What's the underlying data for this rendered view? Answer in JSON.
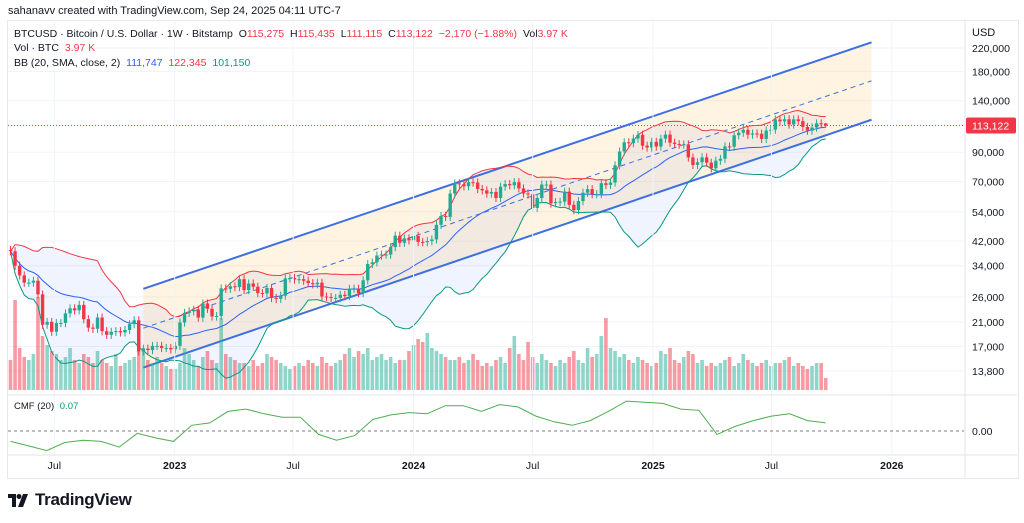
{
  "credit": "sahanavv created with TradingView.com, Sep 24, 2025 04:11 UTC-7",
  "legend": {
    "symbol": "BTCUSD · Bitcoin / U.S. Dollar · 1W · Bitstamp",
    "open_label": "O",
    "open": "115,275",
    "high_label": "H",
    "high": "115,435",
    "low_label": "L",
    "low": "111,115",
    "close_label": "C",
    "close": "113,122",
    "change": "−2,170 (−1.88%)",
    "vol_label": "Vol",
    "vol": "3.97 K",
    "volume_name": "Vol · BTC",
    "volume_value": "3.97 K",
    "bb_name": "BB (20, SMA, close, 2)",
    "bb_basis": "111,747",
    "bb_upper": "122,345",
    "bb_lower": "101,150",
    "cmf_name": "CMF (20)",
    "cmf_value": "0.07"
  },
  "price_axis": {
    "currency": "USD",
    "scale": "log",
    "ticks": [
      {
        "label": "220,000",
        "value": 220000
      },
      {
        "label": "180,000",
        "value": 180000
      },
      {
        "label": "140,000",
        "value": 140000
      },
      {
        "label": "90,000",
        "value": 90000
      },
      {
        "label": "70,000",
        "value": 70000
      },
      {
        "label": "54,000",
        "value": 54000
      },
      {
        "label": "42,000",
        "value": 42000
      },
      {
        "label": "34,000",
        "value": 34000
      },
      {
        "label": "26,000",
        "value": 26000
      },
      {
        "label": "21,000",
        "value": 21000
      },
      {
        "label": "17,000",
        "value": 17000
      },
      {
        "label": "13,800",
        "value": 13800
      }
    ],
    "last_price_label": "113,122",
    "last_price": 113122
  },
  "cmf_axis": {
    "zero_label": "0.00"
  },
  "time_axis": {
    "ticks": [
      {
        "label": "Jul",
        "date": "2022-07-01",
        "bold": false
      },
      {
        "label": "2023",
        "date": "2023-01-01",
        "bold": true
      },
      {
        "label": "Jul",
        "date": "2023-07-01",
        "bold": false
      },
      {
        "label": "2024",
        "date": "2024-01-01",
        "bold": true
      },
      {
        "label": "Jul",
        "date": "2024-07-01",
        "bold": false
      },
      {
        "label": "2025",
        "date": "2025-01-01",
        "bold": true
      },
      {
        "label": "Jul",
        "date": "2025-07-01",
        "bold": false
      },
      {
        "label": "2026",
        "date": "2026-01-01",
        "bold": true
      }
    ]
  },
  "colors": {
    "up": "#22ab94",
    "down": "#f23645",
    "bb_basis": "#2962ff",
    "bb_upper": "#f23645",
    "bb_lower": "#089981",
    "channel": "#3d6fe0",
    "cmf": "#4caf50"
  },
  "chart_data": {
    "type": "candlestick",
    "interval": "1W",
    "start_date": "2022-04-25",
    "y_scale": "log",
    "ylim": [
      11500,
      240000
    ],
    "close": [
      38500,
      34000,
      31300,
      29400,
      29400,
      29900,
      26600,
      20500,
      21000,
      19300,
      20800,
      20800,
      22600,
      23600,
      23200,
      24300,
      21500,
      20000,
      19800,
      21800,
      19400,
      18800,
      19300,
      19400,
      19200,
      19600,
      20600,
      21300,
      16300,
      16700,
      16500,
      17100,
      17100,
      16800,
      16800,
      16600,
      17100,
      20900,
      22700,
      23000,
      23300,
      21800,
      24600,
      23500,
      22000,
      22100,
      28000,
      27900,
      28500,
      28300,
      30300,
      27600,
      29200,
      28400,
      26900,
      26800,
      28100,
      25800,
      25600,
      26300,
      30500,
      30600,
      30200,
      30300,
      29900,
      29300,
      29000,
      29400,
      26100,
      26000,
      25800,
      25800,
      26500,
      26200,
      27900,
      27900,
      26900,
      30000,
      34500,
      35000,
      37100,
      37400,
      37400,
      39900,
      44000,
      41400,
      43000,
      42300,
      43900,
      41700,
      41600,
      42000,
      42600,
      48300,
      52100,
      51700,
      63100,
      68900,
      68400,
      67200,
      69600,
      69400,
      65700,
      64900,
      63100,
      64000,
      60800,
      67000,
      68500,
      67800,
      69600,
      66000,
      63200,
      62700,
      55800,
      60800,
      68200,
      68200,
      58100,
      58700,
      58900,
      64200,
      57300,
      54800,
      59200,
      63600,
      65600,
      62800,
      62900,
      69000,
      68000,
      69400,
      80400,
      90600,
      98000,
      97200,
      101200,
      104500,
      95200,
      93700,
      98400,
      94500,
      101100,
      104700,
      97700,
      96500,
      96100,
      96300,
      86100,
      80700,
      82600,
      86100,
      82300,
      78400,
      83700,
      85100,
      94600,
      94300,
      104100,
      106400,
      109000,
      104600,
      105700,
      105500,
      100900,
      108400,
      109200,
      119100,
      117300,
      119400,
      114200,
      119300,
      117500,
      111800,
      108300,
      111200,
      115300,
      115275,
      113122
    ],
    "volume_k_btc": [
      10,
      30,
      14,
      11,
      10,
      12,
      31,
      18,
      15,
      13,
      12,
      10,
      11,
      14,
      10,
      9,
      12,
      11,
      9,
      13,
      10,
      9,
      8,
      12,
      8,
      9,
      10,
      11,
      22,
      14,
      10,
      9,
      11,
      9,
      8,
      7,
      7,
      9,
      14,
      12,
      10,
      8,
      11,
      13,
      10,
      9,
      24,
      12,
      11,
      10,
      9,
      9,
      8,
      10,
      8,
      9,
      12,
      11,
      10,
      9,
      8,
      7,
      8,
      9,
      8,
      10,
      9,
      8,
      11,
      9,
      8,
      9,
      10,
      12,
      14,
      11,
      13,
      12,
      14,
      10,
      11,
      12,
      10,
      11,
      9,
      10,
      10,
      13,
      15,
      17,
      16,
      19,
      14,
      13,
      12,
      11,
      10,
      10,
      11,
      9,
      10,
      12,
      10,
      8,
      9,
      8,
      10,
      11,
      9,
      14,
      18,
      12,
      10,
      16,
      11,
      9,
      12,
      10,
      9,
      8,
      10,
      9,
      11,
      13,
      10,
      9,
      14,
      11,
      12,
      18,
      24,
      14,
      13,
      11,
      12,
      10,
      9,
      11,
      10,
      9,
      8,
      9,
      13,
      12,
      14,
      10,
      9,
      11,
      13,
      12,
      9,
      10,
      8,
      9,
      8,
      9,
      10,
      11,
      8,
      9,
      12,
      10,
      9,
      8,
      9,
      10,
      8,
      9,
      9,
      10,
      11,
      8,
      9,
      8,
      7,
      8,
      9,
      9,
      4
    ],
    "last_candle": {
      "open": 115275,
      "high": 115435,
      "low": 111115,
      "close": 113122
    },
    "bollinger": {
      "length": 20,
      "mult": 2
    },
    "cmf": [
      -0.09,
      -0.13,
      -0.17,
      -0.1,
      -0.08,
      -0.09,
      -0.14,
      -0.02,
      -0.06,
      -0.09,
      0.05,
      0.07,
      0.17,
      0.19,
      0.15,
      0.12,
      0.12,
      -0.03,
      -0.08,
      -0.04,
      0.1,
      0.14,
      0.16,
      0.15,
      0.22,
      0.22,
      0.17,
      0.23,
      0.21,
      0.13,
      0.08,
      0.05,
      0.09,
      0.17,
      0.26,
      0.25,
      0.24,
      0.19,
      0.18,
      -0.03,
      0.04,
      0.09,
      0.13,
      0.15,
      0.09,
      0.07
    ],
    "parallel_channel": {
      "start_date": "2022-11-14",
      "end_date": "2025-12-01",
      "upper": [
        27900,
        231000
      ],
      "middle": [
        19900,
        166000
      ],
      "lower": [
        14200,
        118900
      ]
    }
  }
}
